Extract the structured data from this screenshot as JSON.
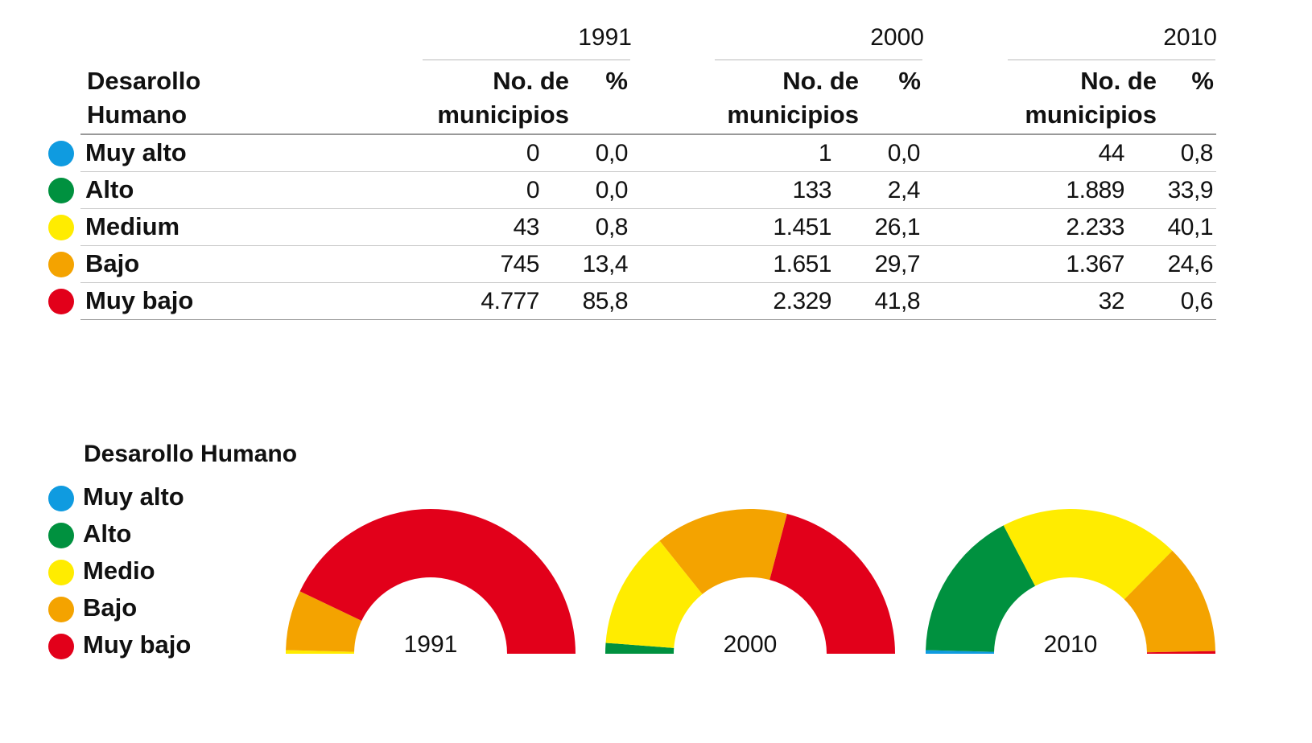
{
  "table": {
    "row_header": [
      "Desarollo",
      "Humano"
    ],
    "years": [
      "1991",
      "2000",
      "2010"
    ],
    "col_count_header": [
      "No. de",
      "municipios"
    ],
    "col_pct_header": "%",
    "rows": [
      {
        "label": "Muy alto",
        "color": "#0f9be0",
        "cells": [
          [
            "0",
            "0,0"
          ],
          [
            "1",
            "0,0"
          ],
          [
            "44",
            "0,8"
          ]
        ]
      },
      {
        "label": "Alto",
        "color": "#00913f",
        "cells": [
          [
            "0",
            "0,0"
          ],
          [
            "133",
            "2,4"
          ],
          [
            "1.889",
            "33,9"
          ]
        ]
      },
      {
        "label": "Medium",
        "color": "#ffec00",
        "cells": [
          [
            "43",
            "0,8"
          ],
          [
            "1.451",
            "26,1"
          ],
          [
            "2.233",
            "40,1"
          ]
        ]
      },
      {
        "label": "Bajo",
        "color": "#f4a300",
        "cells": [
          [
            "745",
            "13,4"
          ],
          [
            "1.651",
            "29,7"
          ],
          [
            "1.367",
            "24,6"
          ]
        ]
      },
      {
        "label": "Muy bajo",
        "color": "#e2001a",
        "cells": [
          [
            "4.777",
            "85,8"
          ],
          [
            "2.329",
            "41,8"
          ],
          [
            "32",
            "0,6"
          ]
        ]
      }
    ]
  },
  "legend": {
    "title": "Desarollo Humano",
    "items": [
      {
        "label": "Muy alto",
        "color": "#0f9be0"
      },
      {
        "label": "Alto",
        "color": "#00913f"
      },
      {
        "label": "Medio",
        "color": "#ffec00"
      },
      {
        "label": "Bajo",
        "color": "#f4a300"
      },
      {
        "label": "Muy bajo",
        "color": "#e2001a"
      }
    ]
  },
  "chart_data": {
    "type": "pie",
    "subtype": "semicircle-donut",
    "categories": [
      "Muy alto",
      "Alto",
      "Medio",
      "Bajo",
      "Muy bajo"
    ],
    "colors": [
      "#0f9be0",
      "#00913f",
      "#ffec00",
      "#f4a300",
      "#e2001a"
    ],
    "series": [
      {
        "name": "1991",
        "values": [
          0.0,
          0.0,
          0.8,
          13.4,
          85.8
        ]
      },
      {
        "name": "2000",
        "values": [
          0.0,
          2.4,
          26.1,
          29.7,
          41.8
        ]
      },
      {
        "name": "2010",
        "values": [
          0.8,
          33.9,
          40.1,
          24.6,
          0.6
        ]
      }
    ],
    "unit": "%"
  }
}
